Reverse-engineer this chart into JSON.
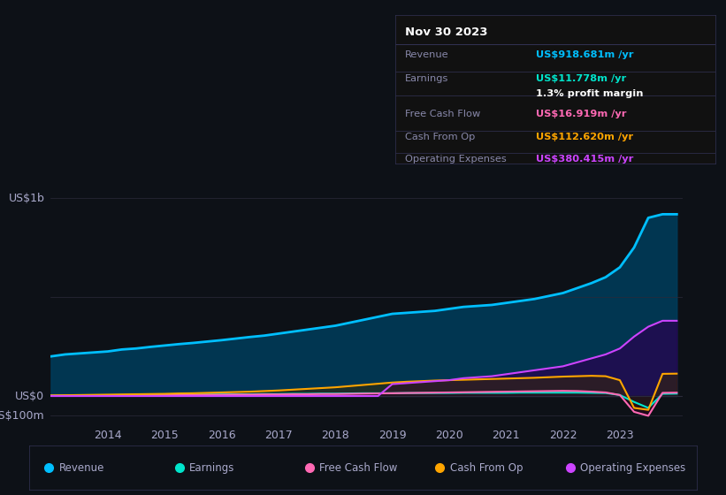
{
  "background_color": "#0d1117",
  "chart_bg_color": "#0d1117",
  "title_box": {
    "date": "Nov 30 2023",
    "rows": [
      {
        "label": "Revenue",
        "value": "US$918.681m",
        "value_color": "#00bfff",
        "suffix": " /yr"
      },
      {
        "label": "Earnings",
        "value": "US$11.778m",
        "value_color": "#00e5cc",
        "suffix": " /yr"
      },
      {
        "label": "",
        "value": "1.3%",
        "value_color": "#ffffff",
        "suffix": " profit margin"
      },
      {
        "label": "Free Cash Flow",
        "value": "US$16.919m",
        "value_color": "#ff69b4",
        "suffix": " /yr"
      },
      {
        "label": "Cash From Op",
        "value": "US$112.620m",
        "value_color": "#ffa500",
        "suffix": " /yr"
      },
      {
        "label": "Operating Expenses",
        "value": "US$380.415m",
        "value_color": "#cc44ff",
        "suffix": " /yr"
      }
    ]
  },
  "ylabel_top": "US$1b",
  "ylabel_zero": "US$0",
  "ylabel_neg": "-US$100m",
  "years": [
    2013.0,
    2013.25,
    2013.5,
    2013.75,
    2014.0,
    2014.25,
    2014.5,
    2014.75,
    2015.0,
    2015.25,
    2015.5,
    2015.75,
    2016.0,
    2016.25,
    2016.5,
    2016.75,
    2017.0,
    2017.25,
    2017.5,
    2017.75,
    2018.0,
    2018.25,
    2018.5,
    2018.75,
    2019.0,
    2019.25,
    2019.5,
    2019.75,
    2020.0,
    2020.25,
    2020.5,
    2020.75,
    2021.0,
    2021.25,
    2021.5,
    2021.75,
    2022.0,
    2022.25,
    2022.5,
    2022.75,
    2023.0,
    2023.25,
    2023.5,
    2023.75,
    2024.0
  ],
  "revenue": [
    200,
    210,
    215,
    220,
    225,
    235,
    240,
    248,
    255,
    262,
    268,
    275,
    282,
    290,
    298,
    305,
    315,
    325,
    335,
    345,
    355,
    370,
    385,
    400,
    415,
    420,
    425,
    430,
    440,
    450,
    455,
    460,
    470,
    480,
    490,
    505,
    520,
    545,
    570,
    600,
    650,
    750,
    900,
    918,
    918
  ],
  "earnings": [
    2,
    3,
    3,
    4,
    4,
    5,
    5,
    6,
    6,
    7,
    7,
    8,
    8,
    9,
    9,
    10,
    10,
    11,
    11,
    12,
    12,
    13,
    14,
    14,
    14,
    15,
    15,
    15,
    15,
    16,
    16,
    16,
    16,
    17,
    17,
    17,
    17,
    17,
    16,
    15,
    5,
    -30,
    -60,
    11,
    12
  ],
  "free_cash_flow": [
    1,
    1,
    2,
    2,
    2,
    3,
    3,
    4,
    4,
    5,
    5,
    6,
    6,
    7,
    7,
    8,
    8,
    9,
    9,
    10,
    10,
    11,
    12,
    13,
    14,
    15,
    16,
    17,
    18,
    19,
    20,
    21,
    22,
    23,
    24,
    25,
    26,
    25,
    22,
    18,
    5,
    -80,
    -100,
    16,
    17
  ],
  "cash_from_op": [
    3,
    4,
    5,
    6,
    7,
    8,
    9,
    10,
    11,
    13,
    14,
    16,
    18,
    20,
    22,
    25,
    28,
    32,
    36,
    40,
    44,
    50,
    56,
    62,
    68,
    72,
    75,
    78,
    80,
    82,
    84,
    86,
    88,
    90,
    92,
    95,
    98,
    100,
    102,
    100,
    80,
    -60,
    -70,
    112,
    113
  ],
  "op_expenses": [
    0,
    0,
    0,
    0,
    0,
    0,
    0,
    0,
    0,
    0,
    0,
    0,
    0,
    0,
    0,
    0,
    0,
    0,
    0,
    0,
    0,
    0,
    0,
    0,
    60,
    65,
    70,
    75,
    80,
    90,
    95,
    100,
    110,
    120,
    130,
    140,
    150,
    170,
    190,
    210,
    240,
    300,
    350,
    380,
    380
  ],
  "revenue_color": "#00bfff",
  "earnings_color": "#00e5cc",
  "fcf_color": "#ff69b4",
  "cfop_color": "#ffa500",
  "opex_color": "#cc44ff",
  "grid_color": "#2a2a3a",
  "text_color": "#8888aa",
  "tick_label_color": "#aaaacc",
  "ylim": [
    -150,
    1100
  ],
  "xtick_years": [
    2014,
    2015,
    2016,
    2017,
    2018,
    2019,
    2020,
    2021,
    2022,
    2023
  ],
  "legend_items": [
    {
      "label": "Revenue",
      "color": "#00bfff"
    },
    {
      "label": "Earnings",
      "color": "#00e5cc"
    },
    {
      "label": "Free Cash Flow",
      "color": "#ff69b4"
    },
    {
      "label": "Cash From Op",
      "color": "#ffa500"
    },
    {
      "label": "Operating Expenses",
      "color": "#cc44ff"
    }
  ]
}
